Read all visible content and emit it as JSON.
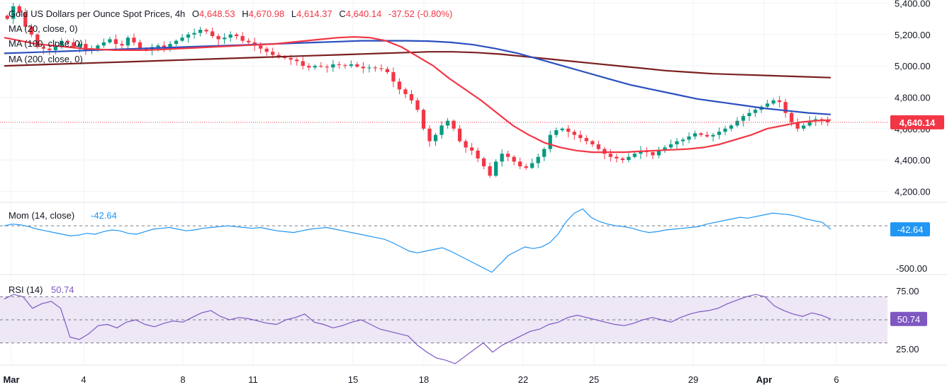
{
  "header": {
    "symbol": "Gold US Dollars per Ounce Spot Prices, 4h",
    "o_label": "O",
    "o_value": "4,648.53",
    "h_label": "H",
    "h_value": "4,670.98",
    "l_label": "L",
    "l_value": "4,614.37",
    "c_label": "C",
    "c_value": "4,640.14",
    "change": "-37.52 (-0.80%)"
  },
  "legend": {
    "ma20": "MA (20, close, 0)",
    "ma100": "MA (100, close, 0)",
    "ma200": "MA (200, close, 0)"
  },
  "colors": {
    "up": "#089981",
    "down": "#f23645",
    "ma20": "#f23645",
    "ma100": "#2a4fbf",
    "ma200": "#7b1f1f",
    "mom": "#2196f3",
    "rsi": "#7e57c2",
    "rsi_band": "#ede7f6"
  },
  "chart_data": [
    {
      "type": "candlestick",
      "title": "Gold US Dollars per Ounce Spot Prices, 4h",
      "y_ticks": [
        "5,400.00",
        "5,200.00",
        "5,000.00",
        "4,800.00",
        "4,600.00",
        "4,400.00",
        "4,200.00"
      ],
      "y_tick_values": [
        5400,
        5200,
        5000,
        4800,
        4600,
        4400,
        4200
      ],
      "ylim": [
        4130,
        5420
      ],
      "last_price": 4640.14,
      "last_price_label": "4,640.14",
      "closes": [
        5300,
        5380,
        5340,
        5250,
        5200,
        5120,
        5110,
        5100,
        5130,
        5160,
        5150,
        5120,
        5140,
        5100,
        5110,
        5130,
        5150,
        5170,
        5140,
        5130,
        5180,
        5150,
        5110,
        5100,
        5120,
        5130,
        5110,
        5140,
        5160,
        5180,
        5200,
        5210,
        5230,
        5220,
        5190,
        5170,
        5180,
        5200,
        5190,
        5160,
        5150,
        5130,
        5110,
        5090,
        5070,
        5060,
        5050,
        5040,
        5030,
        5000,
        4990,
        5000,
        4995,
        4990,
        5010,
        5005,
        5000,
        5010,
        4995,
        4985,
        4990,
        4985,
        4980,
        4960,
        4900,
        4850,
        4820,
        4780,
        4720,
        4600,
        4520,
        4560,
        4620,
        4650,
        4600,
        4520,
        4480,
        4460,
        4410,
        4360,
        4300,
        4390,
        4440,
        4420,
        4390,
        4360,
        4350,
        4380,
        4420,
        4470,
        4560,
        4590,
        4600,
        4580,
        4560,
        4540,
        4520,
        4500,
        4470,
        4440,
        4420,
        4410,
        4400,
        4420,
        4440,
        4460,
        4450,
        4430,
        4460,
        4480,
        4500,
        4520,
        4530,
        4550,
        4570,
        4560,
        4550,
        4560,
        4580,
        4600,
        4620,
        4650,
        4680,
        4700,
        4720,
        4740,
        4760,
        4780,
        4770,
        4700,
        4640,
        4600,
        4620,
        4650,
        4660,
        4650,
        4640.14
      ],
      "ma20": [
        5180,
        5160,
        5140,
        5130,
        5120,
        5110,
        5105,
        5100,
        5100,
        5100,
        5105,
        5110,
        5115,
        5120,
        5125,
        5130,
        5135,
        5140,
        5150,
        5160,
        5170,
        5180,
        5185,
        5180,
        5160,
        5120,
        5060,
        5000,
        4920,
        4850,
        4780,
        4700,
        4620,
        4560,
        4510,
        4480,
        4460,
        4450,
        4450,
        4450,
        4455,
        4460,
        4465,
        4470,
        4480,
        4500,
        4530,
        4560,
        4600,
        4620,
        4640,
        4650,
        4655
      ],
      "ma100": [
        5080,
        5085,
        5090,
        5095,
        5100,
        5105,
        5110,
        5115,
        5120,
        5125,
        5130,
        5135,
        5140,
        5145,
        5150,
        5155,
        5160,
        5160,
        5160,
        5158,
        5150,
        5135,
        5110,
        5080,
        5040,
        5000,
        4960,
        4920,
        4880,
        4850,
        4820,
        4790,
        4770,
        4750,
        4730,
        4715,
        4700,
        4690
      ],
      "ma200": [
        5000,
        5005,
        5010,
        5015,
        5020,
        5025,
        5030,
        5035,
        5040,
        5045,
        5050,
        5055,
        5060,
        5065,
        5070,
        5075,
        5080,
        5085,
        5090,
        5090,
        5085,
        5075,
        5060,
        5045,
        5030,
        5015,
        5000,
        4985,
        4970,
        4960,
        4950,
        4945,
        4940,
        4935,
        4930,
        4925
      ],
      "x_labels": [
        "Mar",
        "4",
        "8",
        "11",
        "15",
        "18",
        "22",
        "25",
        "29",
        "Apr",
        "6"
      ]
    },
    {
      "type": "line",
      "title": "Mom (14, close)",
      "last_value_label": "-42.64",
      "last_value": -42.64,
      "y_ticks": [
        "-500.00"
      ],
      "y_tick_values": [
        -500
      ],
      "ylim": [
        -560,
        260
      ],
      "values": [
        0,
        20,
        10,
        -10,
        -40,
        -60,
        -80,
        -100,
        -120,
        -110,
        -90,
        -100,
        -70,
        -50,
        -60,
        -90,
        -100,
        -70,
        -40,
        -30,
        -20,
        -40,
        -60,
        -50,
        -30,
        -20,
        -10,
        0,
        -10,
        -20,
        -30,
        -20,
        -40,
        -60,
        -70,
        -80,
        -60,
        -40,
        -30,
        -20,
        -40,
        -60,
        -80,
        -100,
        -120,
        -140,
        -160,
        -200,
        -250,
        -300,
        -320,
        -300,
        -280,
        -260,
        -300,
        -350,
        -400,
        -450,
        -500,
        -550,
        -450,
        -350,
        -300,
        -250,
        -270,
        -250,
        -200,
        -100,
        50,
        150,
        200,
        100,
        50,
        20,
        0,
        -10,
        -30,
        -60,
        -80,
        -70,
        -50,
        -40,
        -30,
        -20,
        -10,
        20,
        40,
        60,
        80,
        100,
        90,
        110,
        130,
        150,
        140,
        130,
        110,
        80,
        60,
        40,
        -42.64
      ]
    },
    {
      "type": "line",
      "title": "RSI (14)",
      "last_value_label": "50.74",
      "last_value": 50.74,
      "y_ticks": [
        "75.00",
        "25.00"
      ],
      "y_tick_values": [
        75,
        25
      ],
      "band": [
        30,
        70
      ],
      "ylim": [
        12,
        88
      ],
      "values": [
        68,
        72,
        70,
        60,
        64,
        66,
        60,
        35,
        33,
        38,
        45,
        46,
        43,
        48,
        50,
        46,
        44,
        47,
        49,
        48,
        52,
        56,
        58,
        53,
        50,
        52,
        51,
        49,
        47,
        46,
        50,
        52,
        55,
        48,
        46,
        43,
        45,
        48,
        50,
        46,
        42,
        40,
        38,
        36,
        28,
        22,
        17,
        15,
        12,
        18,
        24,
        30,
        22,
        28,
        32,
        36,
        40,
        42,
        46,
        48,
        52,
        54,
        52,
        50,
        48,
        46,
        45,
        47,
        50,
        52,
        50,
        48,
        52,
        55,
        57,
        58,
        60,
        64,
        67,
        70,
        72,
        70,
        62,
        58,
        55,
        53,
        56,
        54,
        50.74
      ]
    }
  ]
}
